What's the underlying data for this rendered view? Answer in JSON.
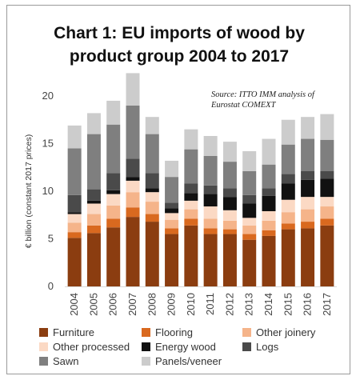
{
  "title_line1": "Chart 1: EU imports of wood by",
  "title_line2": "product group 2004 to 2017",
  "source_line1": "Source: ITTO IMM analysis of",
  "source_line2": "Eurostat COMEXT",
  "chart_data": {
    "type": "bar",
    "stacked": true,
    "categories": [
      "2004",
      "2005",
      "2006",
      "2007",
      "2008",
      "2009",
      "2010",
      "2011",
      "2012",
      "2013",
      "2014",
      "2015",
      "2016",
      "2017"
    ],
    "ylabel": "€ billion (constant 2017 prices)",
    "ylim": [
      0,
      20
    ],
    "yticks": [
      0,
      5,
      10,
      15,
      20
    ],
    "grid": false,
    "legend_position": "bottom",
    "series": [
      {
        "name": "Furniture",
        "color": "#8b3d10",
        "values": [
          5.1,
          5.6,
          6.2,
          7.3,
          6.8,
          5.5,
          6.4,
          5.5,
          5.5,
          4.9,
          5.3,
          6.0,
          6.1,
          6.4
        ]
      },
      {
        "name": "Flooring",
        "color": "#d9691f",
        "values": [
          0.6,
          0.8,
          0.9,
          1.0,
          0.8,
          0.6,
          0.7,
          0.6,
          0.5,
          0.6,
          0.6,
          0.6,
          0.7,
          0.7
        ]
      },
      {
        "name": "Other joinery",
        "color": "#f5b48a",
        "values": [
          1.0,
          1.2,
          1.4,
          1.6,
          1.3,
          0.9,
          1.0,
          1.0,
          0.9,
          0.9,
          1.0,
          1.2,
          1.3,
          1.3
        ]
      },
      {
        "name": "Other processed",
        "color": "#fbd9c4",
        "values": [
          0.9,
          1.1,
          1.2,
          1.2,
          1.0,
          0.7,
          0.9,
          1.3,
          1.1,
          0.8,
          1.0,
          1.3,
          1.3,
          1.0
        ]
      },
      {
        "name": "Energy wood",
        "color": "#111111",
        "values": [
          0.2,
          0.3,
          0.4,
          0.4,
          0.4,
          0.5,
          0.8,
          1.3,
          1.4,
          1.5,
          1.6,
          1.7,
          1.8,
          1.9
        ]
      },
      {
        "name": "Logs",
        "color": "#4a4a4a",
        "values": [
          1.8,
          1.2,
          1.8,
          1.9,
          1.6,
          0.6,
          1.0,
          0.9,
          0.9,
          0.9,
          0.8,
          1.0,
          0.9,
          0.8
        ]
      },
      {
        "name": "Sawn",
        "color": "#7f7f7f",
        "values": [
          4.9,
          5.8,
          5.1,
          5.6,
          4.1,
          2.7,
          3.6,
          3.1,
          2.8,
          2.5,
          2.5,
          3.1,
          3.4,
          3.3
        ]
      },
      {
        "name": "Panels/veneer",
        "color": "#cccccc",
        "values": [
          2.4,
          2.2,
          2.5,
          3.4,
          1.8,
          1.7,
          2.1,
          2.1,
          2.1,
          2.1,
          2.7,
          2.6,
          2.3,
          2.7
        ]
      }
    ]
  }
}
